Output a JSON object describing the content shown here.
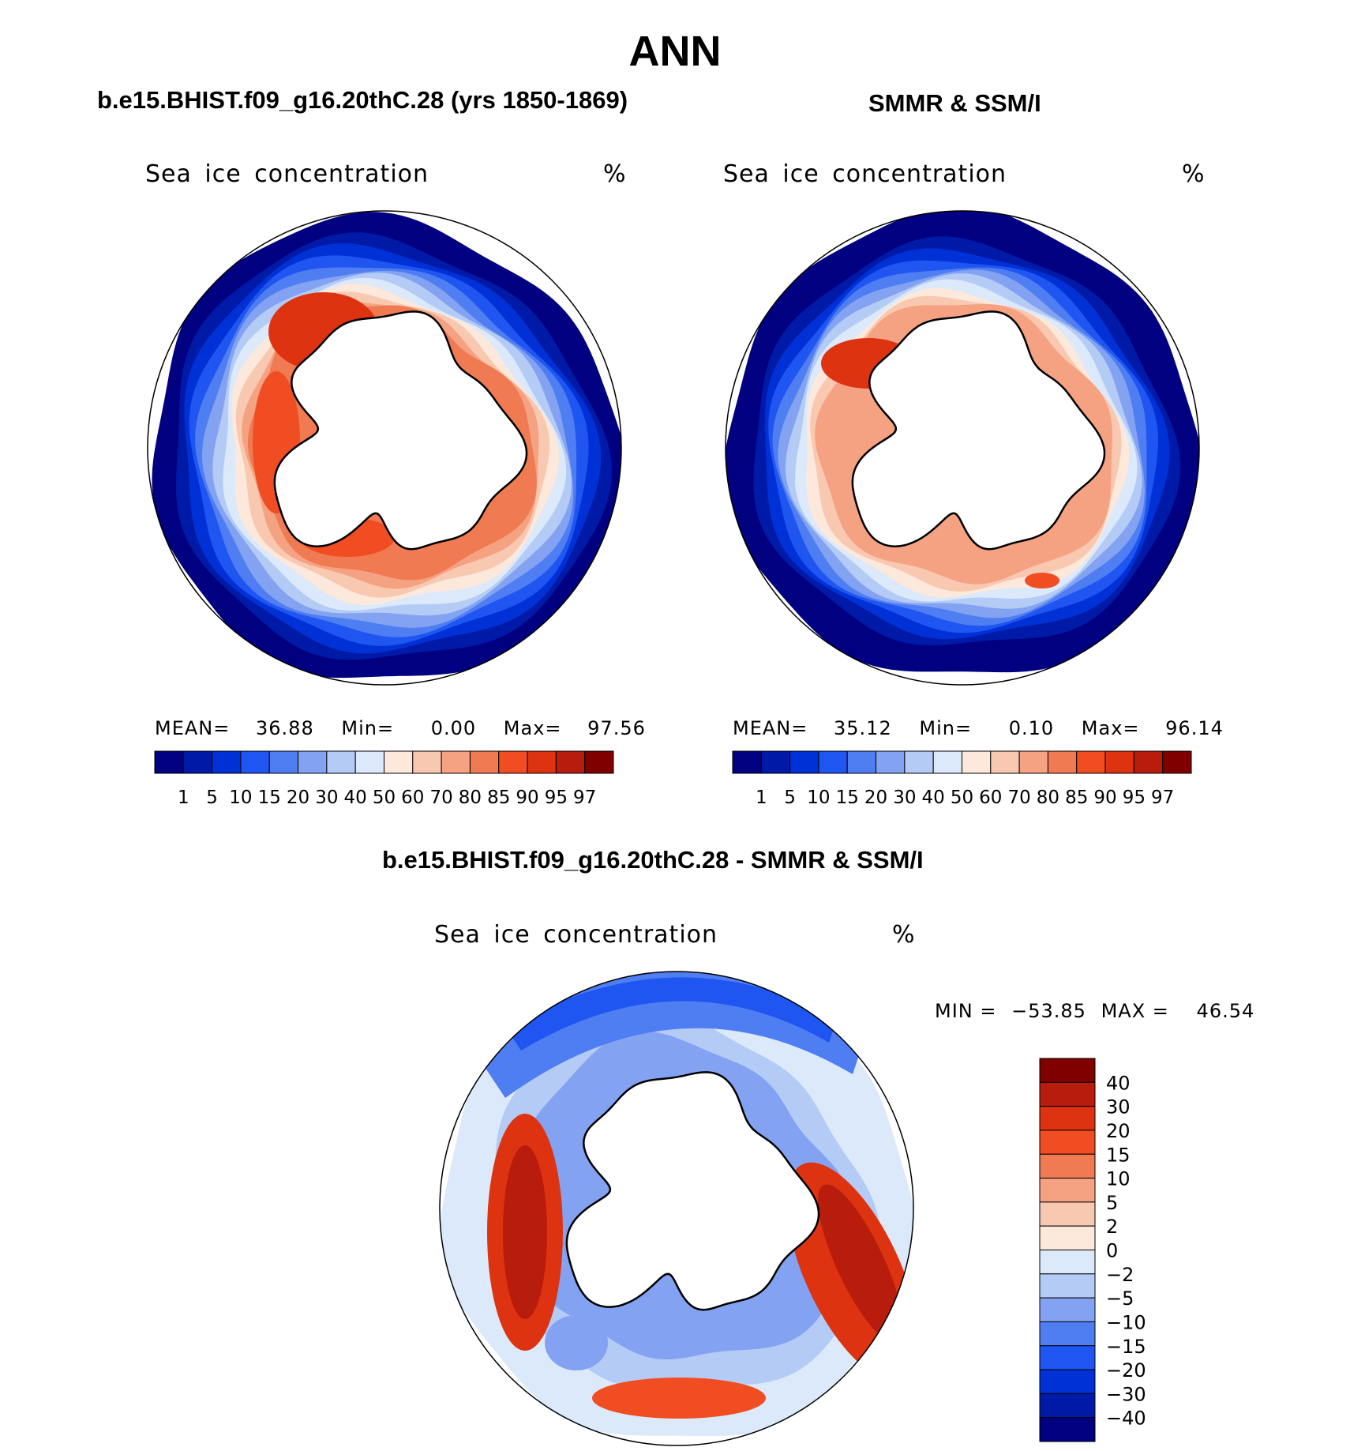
{
  "figure": {
    "season": "ANN",
    "panel_left_title": "b.e15.BHIST.f09_g16.20thC.28 (yrs 1850-1869)",
    "panel_right_title": "SMMR & SSM/I",
    "diff_title": "b.e15.BHIST.f09_g16.20thC.28 - SMMR & SSM/I"
  },
  "panels": {
    "model": {
      "variable": "Sea ice concentration",
      "units": "%",
      "stats": {
        "mean_label": "MEAN=",
        "mean": "36.88",
        "min_label": "Min=",
        "min": "0.00",
        "max_label": "Max=",
        "max": "97.56"
      }
    },
    "obs": {
      "variable": "Sea ice concentration",
      "units": "%",
      "stats": {
        "mean_label": "MEAN=",
        "mean": "35.12",
        "min_label": "Min=",
        "min": "0.10",
        "max_label": "Max=",
        "max": "96.14"
      }
    },
    "diff": {
      "variable": "Sea ice concentration",
      "units": "%",
      "stats": {
        "min_label": "MIN =",
        "min": "−53.85",
        "max_label": "MAX =",
        "max": "46.54"
      }
    }
  },
  "chart_data": [
    {
      "type": "heatmap",
      "title": "b.e15.BHIST.f09_g16.20thC.28 (yrs 1850-1869)",
      "variable": "Sea ice concentration",
      "units": "%",
      "projection": "south polar stereographic",
      "levels": [
        "1",
        "5",
        "10",
        "15",
        "20",
        "30",
        "40",
        "50",
        "60",
        "70",
        "80",
        "85",
        "90",
        "95",
        "97"
      ],
      "colors": [
        "#000080",
        "#001aa8",
        "#0031d6",
        "#1f55f0",
        "#4f7df2",
        "#83a3f2",
        "#b4cbf6",
        "#dbe9fb",
        "#fde8dc",
        "#f9c8b0",
        "#f5a283",
        "#f07a52",
        "#f04d22",
        "#dd3311",
        "#b81c0c",
        "#800000"
      ],
      "stats": {
        "mean": 36.88,
        "min": 0.0,
        "max": 97.56
      }
    },
    {
      "type": "heatmap",
      "title": "SMMR & SSM/I",
      "variable": "Sea ice concentration",
      "units": "%",
      "projection": "south polar stereographic",
      "levels": [
        "1",
        "5",
        "10",
        "15",
        "20",
        "30",
        "40",
        "50",
        "60",
        "70",
        "80",
        "85",
        "90",
        "95",
        "97"
      ],
      "colors": [
        "#000080",
        "#001aa8",
        "#0031d6",
        "#1f55f0",
        "#4f7df2",
        "#83a3f2",
        "#b4cbf6",
        "#dbe9fb",
        "#fde8dc",
        "#f9c8b0",
        "#f5a283",
        "#f07a52",
        "#f04d22",
        "#dd3311",
        "#b81c0c",
        "#800000"
      ],
      "stats": {
        "mean": 35.12,
        "min": 0.1,
        "max": 96.14
      }
    },
    {
      "type": "heatmap",
      "title": "b.e15.BHIST.f09_g16.20thC.28 - SMMR & SSM/I",
      "variable": "Sea ice concentration",
      "units": "%",
      "projection": "south polar stereographic",
      "levels": [
        "40",
        "30",
        "20",
        "15",
        "10",
        "5",
        "2",
        "0",
        "−2",
        "−5",
        "−10",
        "−15",
        "−20",
        "−30",
        "−40"
      ],
      "colors": [
        "#800000",
        "#b81c0c",
        "#dd3311",
        "#f04d22",
        "#f07a52",
        "#f5a283",
        "#f9c8b0",
        "#fde8dc",
        "#dbe9fb",
        "#b4cbf6",
        "#83a3f2",
        "#4f7df2",
        "#1f55f0",
        "#0031d6",
        "#001aa8",
        "#000080"
      ],
      "stats": {
        "min": -53.85,
        "max": 46.54
      }
    }
  ]
}
